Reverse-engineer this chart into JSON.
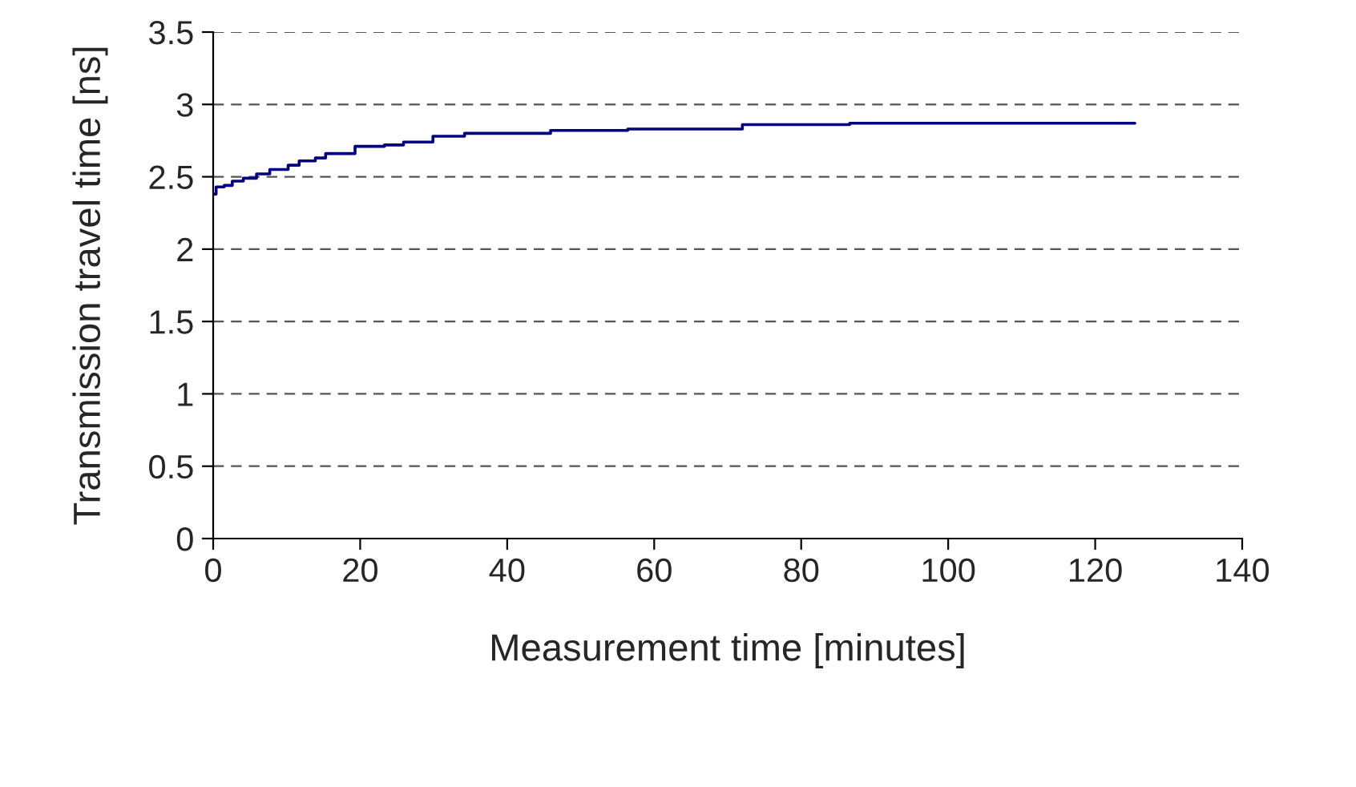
{
  "chart_data": {
    "type": "step",
    "xlabel": "Measurement time [minutes]",
    "ylabel": "Transmission travel time [ns]",
    "series": [
      {
        "color": "#000080",
        "x": [
          0,
          0.4,
          1.5,
          2.6,
          4.1,
          5.9,
          7.7,
          10.2,
          11.7,
          13.9,
          15.3,
          19.3,
          23.3,
          25.9,
          29.9,
          34.2,
          45.9,
          56.4,
          72.0,
          86.6,
          125.4
        ],
        "values": [
          2.38,
          2.43,
          2.44,
          2.47,
          2.49,
          2.52,
          2.55,
          2.58,
          2.61,
          2.63,
          2.66,
          2.71,
          2.72,
          2.74,
          2.78,
          2.8,
          2.82,
          2.83,
          2.86,
          2.87,
          2.87
        ]
      }
    ],
    "xlim": [
      0,
      140
    ],
    "xticks": [
      0,
      20,
      40,
      60,
      80,
      100,
      120,
      140
    ],
    "ylim": [
      0,
      3.5
    ],
    "yticks": [
      0,
      0.5,
      1,
      1.5,
      2,
      2.5,
      3,
      3.5
    ],
    "grid": "y",
    "legend": false
  }
}
